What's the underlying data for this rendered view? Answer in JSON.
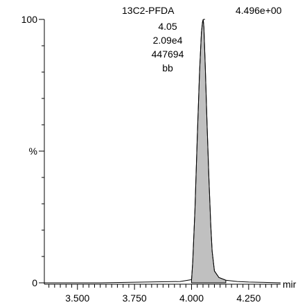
{
  "chart_data": {
    "type": "area",
    "compound": "13C2-PFDA",
    "scale_label": "4.496e+00",
    "peak_annotations": [
      "4.05",
      "2.09e4",
      "447694",
      "bb"
    ],
    "ylabel": "%",
    "xlabel": "mir",
    "xlim": [
      3.355,
      4.39
    ],
    "ylim": [
      0,
      100
    ],
    "xticks": [
      {
        "value": 3.5,
        "label": "3.500"
      },
      {
        "value": 3.75,
        "label": "3.750"
      },
      {
        "value": 4.0,
        "label": "4.000"
      },
      {
        "value": 4.25,
        "label": "4.250"
      }
    ],
    "yticks": [
      {
        "value": 0,
        "label": "0"
      },
      {
        "value": 50,
        "label": "%"
      },
      {
        "value": 100,
        "label": "100"
      }
    ],
    "series": [
      {
        "x": [
          3.355,
          3.6,
          3.8,
          3.95,
          4.0,
          4.005,
          4.015,
          4.025,
          4.035,
          4.043,
          4.048,
          4.051,
          4.054,
          4.06,
          4.068,
          4.076,
          4.084,
          4.09,
          4.1,
          4.12,
          4.15,
          4.2,
          4.25,
          4.3,
          4.39
        ],
        "values": [
          0,
          0,
          0.3,
          0.5,
          1.2,
          8,
          28,
          55,
          80,
          95,
          99,
          100,
          97,
          82,
          60,
          40,
          22,
          12,
          4.5,
          2,
          1,
          0.5,
          0.3,
          0.2,
          0
        ]
      }
    ],
    "colors": {
      "fill": "#c0c0c0",
      "line": "#000000"
    }
  }
}
